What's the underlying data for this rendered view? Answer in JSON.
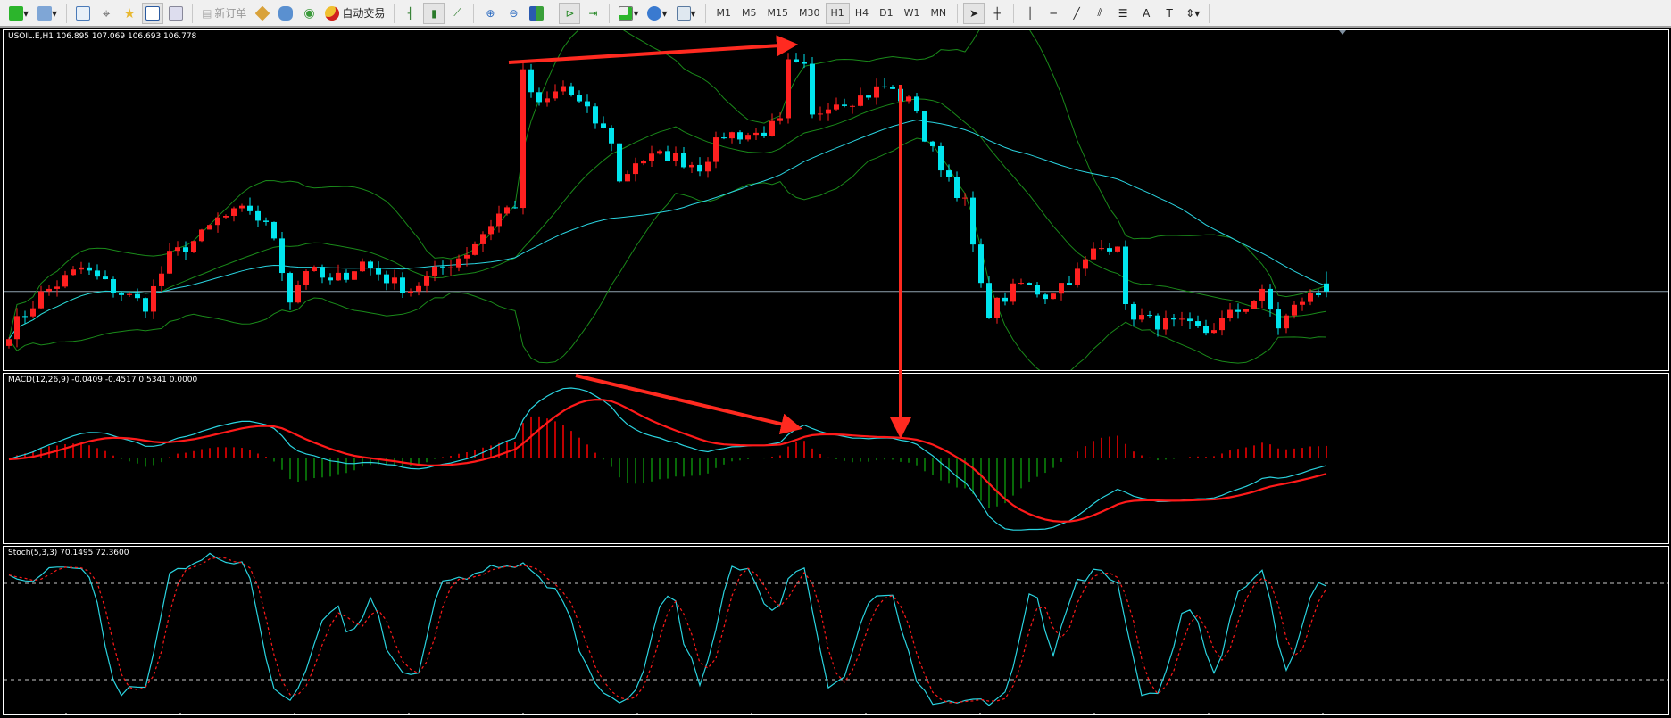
{
  "toolbar": {
    "items": [
      {
        "name": "new-chart",
        "icon": "new-chart-icon"
      },
      {
        "name": "profiles",
        "icon": "profiles-icon"
      },
      {
        "name": "market-watch",
        "icon": "market-watch-icon"
      },
      {
        "name": "navigator",
        "icon": "crosshair-icon"
      },
      {
        "name": "favorites",
        "icon": "star-folder-icon"
      },
      {
        "name": "terminal",
        "icon": "terminal-icon"
      },
      {
        "name": "strategy-tester",
        "icon": "tester-icon"
      }
    ],
    "new_order_label": "新订单",
    "auto_trading_label": "自动交易",
    "timeframes": [
      "M1",
      "M5",
      "M15",
      "M30",
      "H1",
      "H4",
      "D1",
      "W1",
      "MN"
    ],
    "active_timeframe": "H1"
  },
  "main": {
    "label": "USOIL.E,H1  106.895 107.069 106.693 106.778",
    "symbol": "USOIL.E",
    "timeframe": "H1",
    "ohlc": {
      "open": 106.895,
      "high": 107.069,
      "low": 106.693,
      "close": 106.778
    }
  },
  "macd": {
    "label": "MACD(12,26,9) -0.0409 -0.4517 0.5341 0.0000",
    "params": [
      12,
      26,
      9
    ],
    "values": [
      -0.0409,
      -0.4517,
      0.5341,
      0.0
    ]
  },
  "stoch": {
    "label": "Stoch(5,3,3) 70.1495 72.3600",
    "params": [
      5,
      3,
      3
    ],
    "values": [
      70.1495,
      72.36
    ],
    "levels": [
      80,
      20
    ]
  },
  "colors": {
    "bull": "#ff2020",
    "bear": "#00e5ee",
    "bands": "#1a8a1a",
    "ma": "#2ad4e0",
    "signal": "#ff1a1a",
    "hist_pos": "#ff0000",
    "hist_neg": "#0a8a0a",
    "annotation": "#ff2a20",
    "bid_line": "#8fa3b0"
  },
  "chart_data": {
    "type": "candlestick",
    "ylim": [
      105.6,
      110.6
    ],
    "bars": 165,
    "close_waypoints": [
      [
        0,
        106.19
      ],
      [
        4,
        106.73
      ],
      [
        9,
        107.12
      ],
      [
        13,
        106.81
      ],
      [
        17,
        106.58
      ],
      [
        20,
        107.28
      ],
      [
        24,
        107.59
      ],
      [
        26,
        107.83
      ],
      [
        30,
        107.98
      ],
      [
        33,
        107.59
      ],
      [
        35,
        106.66
      ],
      [
        37,
        107.12
      ],
      [
        40,
        106.89
      ],
      [
        44,
        107.2
      ],
      [
        48,
        106.89
      ],
      [
        50,
        106.81
      ],
      [
        53,
        107.05
      ],
      [
        57,
        107.36
      ],
      [
        61,
        107.91
      ],
      [
        63,
        108.06
      ],
      [
        64,
        109.94
      ],
      [
        66,
        109.47
      ],
      [
        69,
        109.78
      ],
      [
        72,
        109.39
      ],
      [
        75,
        109.0
      ],
      [
        76,
        108.37
      ],
      [
        78,
        108.69
      ],
      [
        82,
        108.77
      ],
      [
        86,
        108.61
      ],
      [
        89,
        109.08
      ],
      [
        93,
        109.08
      ],
      [
        96,
        109.23
      ],
      [
        97,
        110.09
      ],
      [
        99,
        110.02
      ],
      [
        100,
        109.31
      ],
      [
        102,
        109.55
      ],
      [
        106,
        109.62
      ],
      [
        109,
        109.78
      ],
      [
        111,
        109.62
      ],
      [
        113,
        109.47
      ],
      [
        114,
        109.0
      ],
      [
        117,
        108.45
      ],
      [
        119,
        108.06
      ],
      [
        121,
        106.81
      ],
      [
        122,
        106.5
      ],
      [
        126,
        106.89
      ],
      [
        129,
        106.73
      ],
      [
        133,
        107.05
      ],
      [
        135,
        107.36
      ],
      [
        138,
        107.52
      ],
      [
        139,
        106.5
      ],
      [
        142,
        106.34
      ],
      [
        146,
        106.27
      ],
      [
        149,
        106.19
      ],
      [
        153,
        106.5
      ],
      [
        156,
        106.73
      ],
      [
        158,
        106.27
      ],
      [
        161,
        106.66
      ],
      [
        164,
        106.78
      ]
    ],
    "bid": 106.778
  }
}
